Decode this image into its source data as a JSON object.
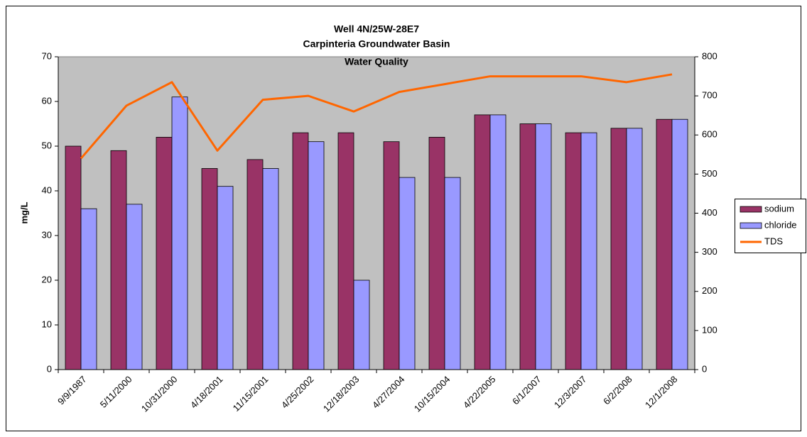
{
  "chart_data": {
    "type": "bar",
    "title": [
      "Well 4N/25W-28E7",
      "Carpinteria Groundwater Basin",
      "Water Quality"
    ],
    "y_label": "mg/L",
    "categories": [
      "9/9/1987",
      "5/11/2000",
      "10/31/2000",
      "4/18/2001",
      "11/15/2001",
      "4/25/2002",
      "12/18/2003",
      "4/27/2004",
      "10/15/2004",
      "4/22/2005",
      "6/1/2007",
      "12/3/2007",
      "6/2/2008",
      "12/1/2008"
    ],
    "series": [
      {
        "name": "sodium",
        "type": "bar",
        "color": "#993366",
        "values": [
          50,
          49,
          52,
          45,
          47,
          53,
          53,
          51,
          52,
          57,
          55,
          53,
          54,
          56
        ]
      },
      {
        "name": "chloride",
        "type": "bar",
        "color": "#9999ff",
        "values": [
          36,
          37,
          61,
          41,
          45,
          51,
          20,
          43,
          43,
          57,
          55,
          53,
          54,
          56
        ]
      },
      {
        "name": "TDS",
        "type": "line",
        "axis": "y2",
        "color": "#ff6600",
        "values": [
          540,
          675,
          735,
          560,
          690,
          700,
          660,
          710,
          730,
          750,
          750,
          750,
          735,
          755
        ]
      }
    ],
    "ylim": [
      0,
      70
    ],
    "yticks": [
      0,
      10,
      20,
      30,
      40,
      50,
      60,
      70
    ],
    "y2lim": [
      0,
      800
    ],
    "y2ticks": [
      0,
      100,
      200,
      300,
      400,
      500,
      600,
      700,
      800
    ],
    "plot_background": "#c0c0c0",
    "legend": "right"
  }
}
